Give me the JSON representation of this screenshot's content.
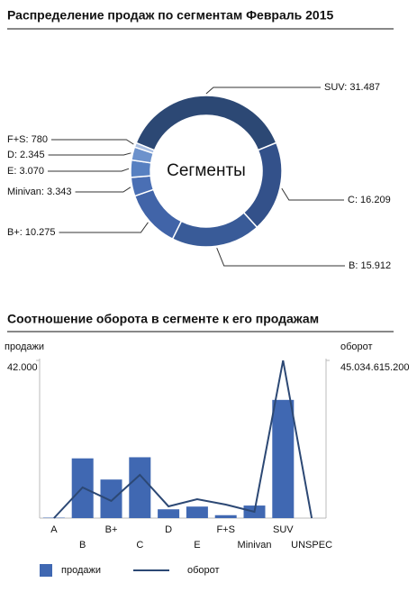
{
  "chart_data": [
    {
      "type": "donut",
      "title": "Распределение продаж по сегментам Февраль 2015",
      "center_label": "Сегменты",
      "labels": [
        "SUV: 31.487",
        "C: 16.209",
        "B: 15.912",
        "B+: 10.275",
        "Minivan: 3.343",
        "E: 3.070",
        "D: 2.345",
        "F+S: 780"
      ],
      "values": [
        31487,
        16209,
        15912,
        10275,
        3343,
        3070,
        2345,
        780
      ],
      "colors": [
        "#2c4874",
        "#33518a",
        "#395b98",
        "#4164a8",
        "#4a6fb4",
        "#5780c1",
        "#6d92cc",
        "#a9bfe2"
      ]
    },
    {
      "type": "bar-line",
      "title": "Соотношение оборота в сегменте к его продажам",
      "ylabel": "продажи",
      "y2label": "оборот",
      "categories": [
        "A",
        "B",
        "B+",
        "C",
        "D",
        "E",
        "F+S",
        "Minivan",
        "SUV",
        "UNSPEC"
      ],
      "series": [
        {
          "name": "продажи",
          "color": "#4068b2",
          "values": [
            120,
            15912,
            10275,
            16209,
            2345,
            3070,
            780,
            3343,
            31487,
            0
          ]
        },
        {
          "name": "оборот",
          "color": "#2c4874",
          "axis": "y2",
          "values": [
            0,
            8750000000,
            4900000000,
            12350000000,
            3350000000,
            5400000000,
            3860000000,
            1800000000,
            45034615200,
            0
          ]
        }
      ],
      "ylim": [
        0,
        42000
      ],
      "yticks": [
        {
          "value": 42000,
          "label": "42.000"
        }
      ],
      "y2lim": [
        0,
        45034615200
      ],
      "y2ticks": [
        {
          "value": 45034615200,
          "label": "45.034.615.200"
        }
      ]
    }
  ]
}
